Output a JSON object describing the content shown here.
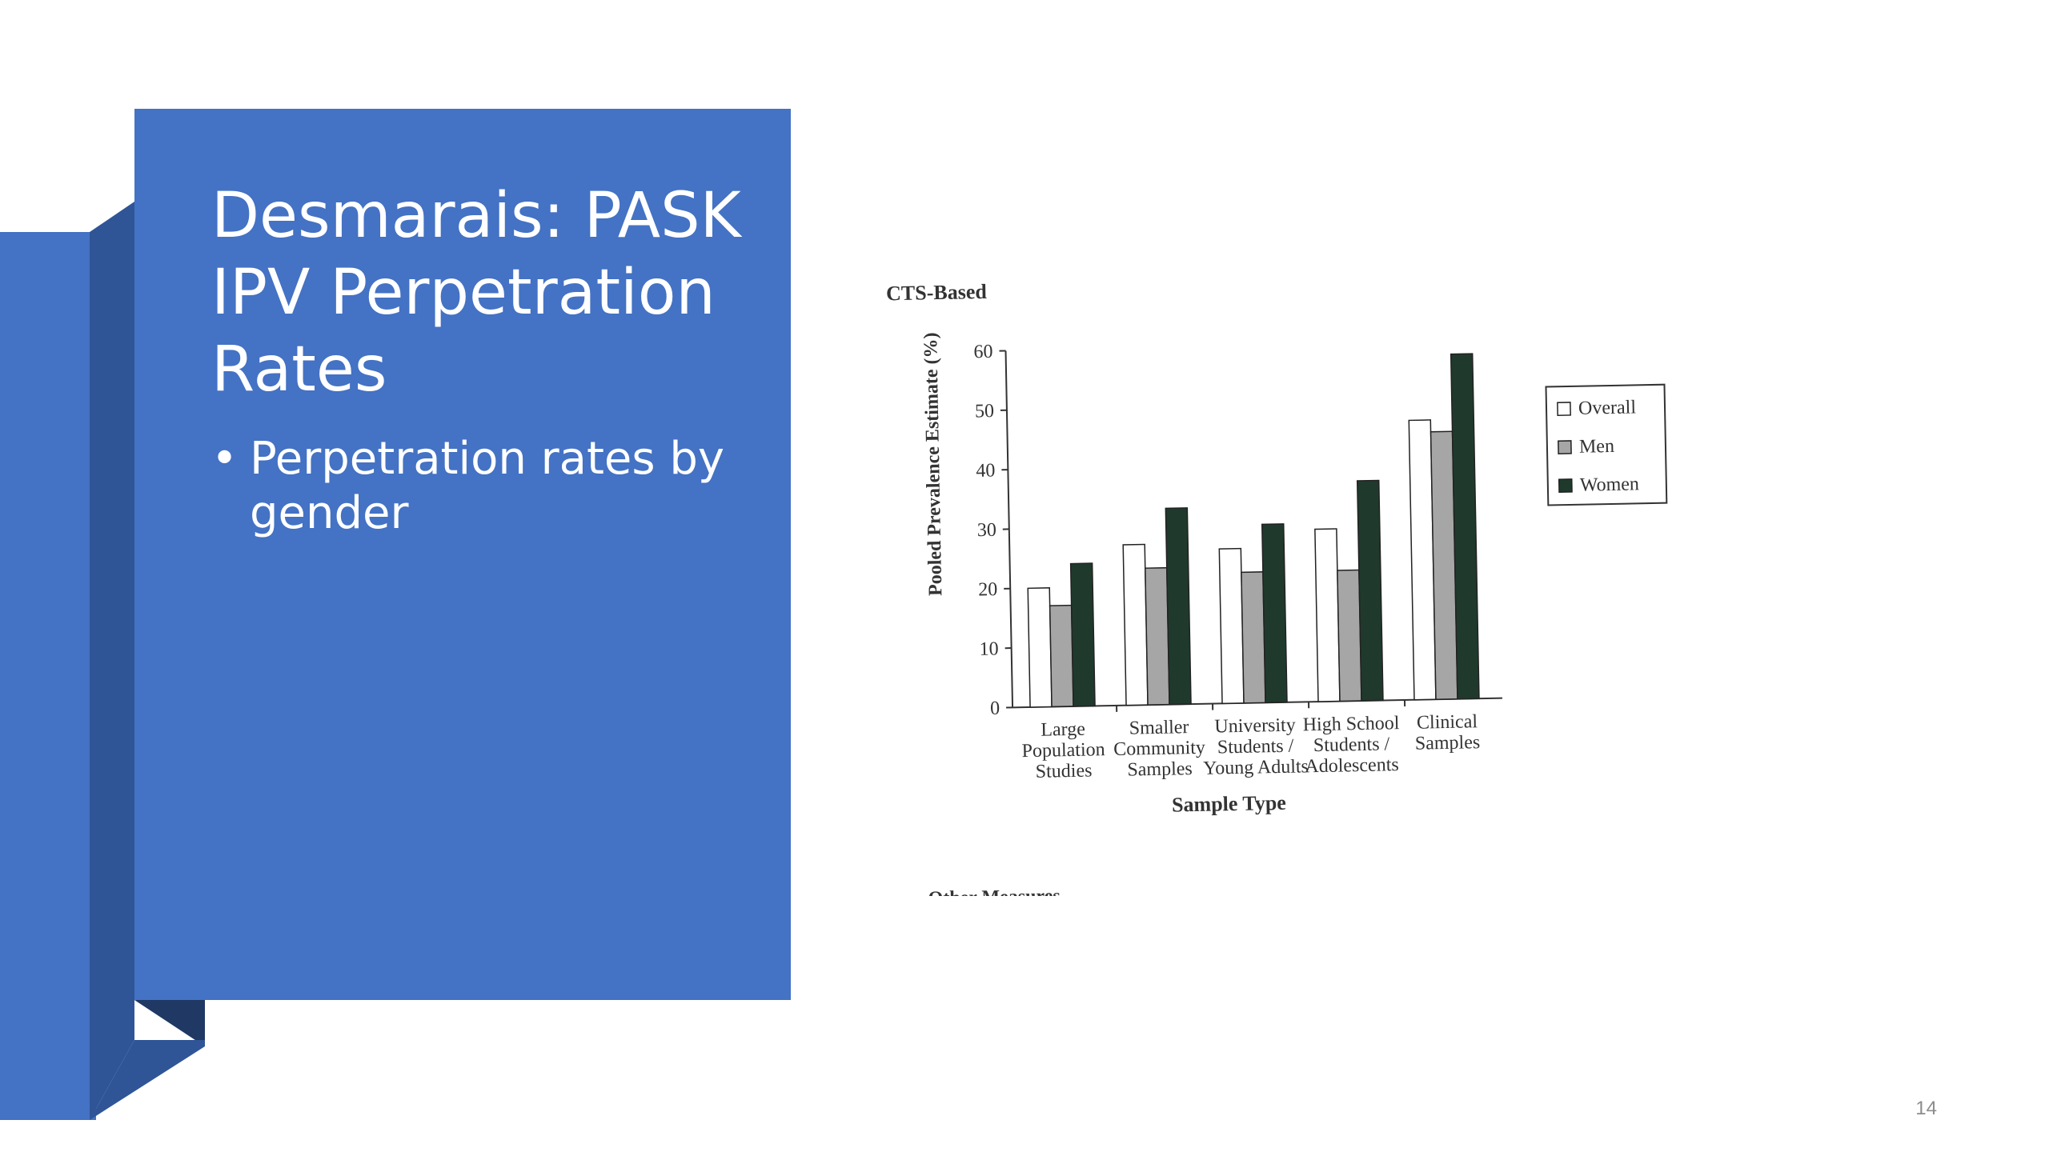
{
  "slide": {
    "title": "Desmarais: PASK IPV Perpetration Rates",
    "bullets": [
      "Perpetration  rates by gender"
    ],
    "number": "14",
    "accent_color": "#4472c4",
    "accent_dark": "#2f5597"
  },
  "chart_data": {
    "type": "bar",
    "title": "CTS-Based",
    "xlabel": "Sample Type",
    "ylabel": "Pooled Prevalence Estimate (%)",
    "ylim": [
      0,
      60
    ],
    "yticks": [
      0,
      10,
      20,
      30,
      40,
      50,
      60
    ],
    "categories": [
      [
        "Large",
        "Population",
        "Studies"
      ],
      [
        "Smaller",
        "Community",
        "Samples"
      ],
      [
        "University",
        "Students /",
        "Young Adults"
      ],
      [
        "High School",
        "Students /",
        "Adolescents"
      ],
      [
        "Clinical",
        "Samples"
      ]
    ],
    "series": [
      {
        "name": "Overall",
        "color": "#ffffff",
        "values": [
          20,
          27,
          26,
          29,
          47
        ]
      },
      {
        "name": "Men",
        "color": "#a6a6a6",
        "values": [
          17,
          23,
          22,
          22,
          45
        ]
      },
      {
        "name": "Women",
        "color": "#1f3a2c",
        "values": [
          24,
          33,
          30,
          37,
          58
        ]
      }
    ],
    "legend_position": "right",
    "grid": false,
    "next_heading": "Other Measures"
  }
}
